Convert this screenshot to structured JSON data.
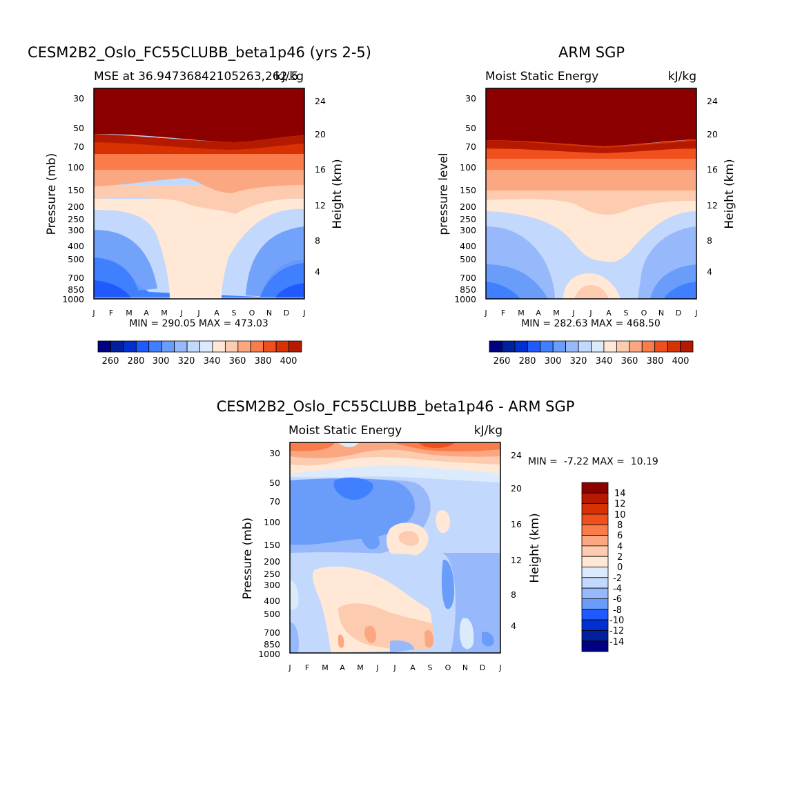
{
  "chart_data": [
    {
      "type": "heatmap",
      "title": "CESM2B2_Oslo_FC55CLUBB_beta1p46 (yrs 2-5)",
      "subtitle_left": "MSE at 36.94736842105263,262.5",
      "subtitle_right": "kJ/kg",
      "ylabel": "Pressure (mb)",
      "ylabel_right": "Height (km)",
      "months": [
        "J",
        "F",
        "M",
        "A",
        "M",
        "J",
        "J",
        "A",
        "S",
        "O",
        "N",
        "D",
        "J"
      ],
      "pressure_ticks": [
        "30",
        "50",
        "70",
        "100",
        "150",
        "200",
        "250",
        "300",
        "400",
        "500",
        "700",
        "850",
        "1000"
      ],
      "height_ticks": [
        "24",
        "20",
        "16",
        "12",
        "8",
        "4"
      ],
      "stats": "MIN = 290.05 MAX = 473.03",
      "colorbar_labels": [
        "260",
        "280",
        "300",
        "320",
        "340",
        "360",
        "380",
        "400"
      ]
    },
    {
      "type": "heatmap",
      "title": "ARM SGP",
      "subtitle_left": "Moist Static Energy",
      "subtitle_right": "kJ/kg",
      "ylabel": "pressure level",
      "ylabel_right": "Height (km)",
      "months": [
        "J",
        "F",
        "M",
        "A",
        "M",
        "J",
        "J",
        "A",
        "S",
        "O",
        "N",
        "D",
        "J"
      ],
      "pressure_ticks": [
        "30",
        "50",
        "70",
        "100",
        "150",
        "200",
        "250",
        "300",
        "400",
        "500",
        "700",
        "850",
        "1000"
      ],
      "height_ticks": [
        "24",
        "20",
        "16",
        "12",
        "8",
        "4"
      ],
      "stats": "MIN = 282.63 MAX = 468.50",
      "colorbar_labels": [
        "260",
        "280",
        "300",
        "320",
        "340",
        "360",
        "380",
        "400"
      ]
    },
    {
      "type": "heatmap",
      "title": "CESM2B2_Oslo_FC55CLUBB_beta1p46 - ARM SGP",
      "subtitle_left": "Moist Static Energy",
      "subtitle_right": "kJ/kg",
      "ylabel": "Pressure (mb)",
      "ylabel_right": "Height (km)",
      "months": [
        "J",
        "F",
        "M",
        "A",
        "M",
        "J",
        "J",
        "A",
        "S",
        "O",
        "N",
        "D",
        "J"
      ],
      "pressure_ticks": [
        "30",
        "50",
        "70",
        "100",
        "150",
        "200",
        "250",
        "300",
        "400",
        "500",
        "700",
        "850",
        "1000"
      ],
      "height_ticks": [
        "24",
        "20",
        "16",
        "12",
        "8",
        "4"
      ],
      "stats": "MIN =  -7.22 MAX =  10.19",
      "colorbar_labels": [
        "14",
        "12",
        "10",
        "8",
        "6",
        "4",
        "2",
        "0",
        "-2",
        "-4",
        "-6",
        "-8",
        "-10",
        "-12",
        "-14"
      ]
    }
  ],
  "palette": {
    "blue_red_16": [
      "#000080",
      "#0020a0",
      "#0030d0",
      "#1f5aff",
      "#4080ff",
      "#6a9cfa",
      "#97b9fc",
      "#c2d8fc",
      "#dcebfc",
      "#ffe8d6",
      "#fdccb0",
      "#fba882",
      "#f97c4a",
      "#f0501e",
      "#d83204",
      "#b51a00",
      "#8c0000"
    ]
  }
}
